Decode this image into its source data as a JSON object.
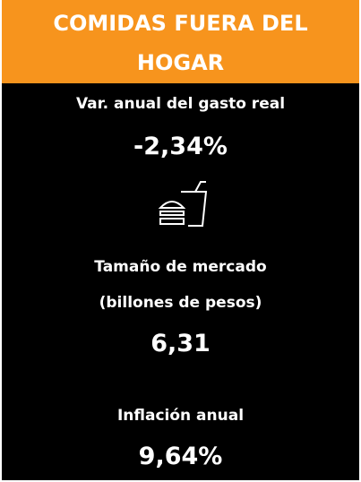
{
  "header": {
    "title_line1": "COMIDAS FUERA DEL",
    "title_line2": "HOGAR"
  },
  "metrics": [
    {
      "label": "Var. anual del gasto real",
      "value": "-2,34%"
    },
    {
      "label_line1": "Tamaño de mercado",
      "label_line2": "(billones de pesos)",
      "value": "6,31"
    },
    {
      "label": "Inflación anual",
      "value": "9,64%"
    }
  ]
}
